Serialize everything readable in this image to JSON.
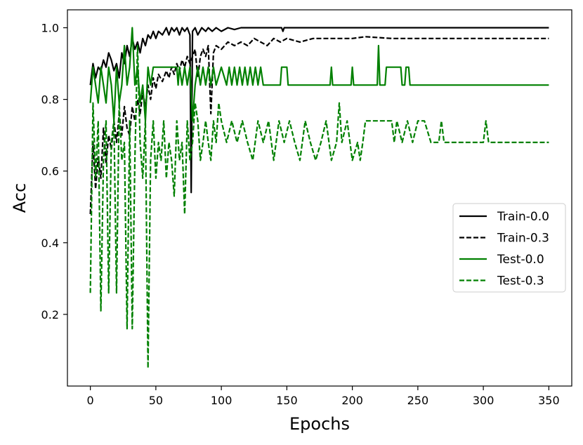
{
  "chart_data": {
    "type": "line",
    "title": "",
    "xlabel": "Epochs",
    "ylabel": "Acc",
    "xlim": [
      -17.5,
      367.5
    ],
    "ylim": [
      0.0,
      1.05
    ],
    "xticks": [
      0,
      50,
      100,
      150,
      200,
      250,
      300,
      350
    ],
    "yticks": [
      0.2,
      0.4,
      0.6,
      0.8,
      1.0
    ],
    "legend_position": "center-right",
    "grid": false,
    "series": [
      {
        "name": "Train-0.0",
        "color": "#000000",
        "dash": "solid",
        "points": [
          [
            0,
            0.84
          ],
          [
            2,
            0.9
          ],
          [
            4,
            0.86
          ],
          [
            6,
            0.89
          ],
          [
            8,
            0.88
          ],
          [
            10,
            0.91
          ],
          [
            12,
            0.89
          ],
          [
            14,
            0.93
          ],
          [
            16,
            0.91
          ],
          [
            18,
            0.88
          ],
          [
            20,
            0.9
          ],
          [
            22,
            0.86
          ],
          [
            24,
            0.93
          ],
          [
            26,
            0.9
          ],
          [
            28,
            0.95
          ],
          [
            30,
            0.92
          ],
          [
            32,
            0.97
          ],
          [
            34,
            0.94
          ],
          [
            36,
            0.96
          ],
          [
            38,
            0.93
          ],
          [
            40,
            0.97
          ],
          [
            42,
            0.95
          ],
          [
            44,
            0.98
          ],
          [
            46,
            0.97
          ],
          [
            48,
            0.99
          ],
          [
            50,
            0.97
          ],
          [
            52,
            0.99
          ],
          [
            55,
            0.98
          ],
          [
            58,
            1.0
          ],
          [
            60,
            0.98
          ],
          [
            62,
            1.0
          ],
          [
            64,
            0.99
          ],
          [
            66,
            1.0
          ],
          [
            68,
            0.98
          ],
          [
            70,
            1.0
          ],
          [
            72,
            0.99
          ],
          [
            74,
            1.0
          ],
          [
            76,
            0.98
          ],
          [
            77,
            0.54
          ],
          [
            78,
            0.99
          ],
          [
            80,
            1.0
          ],
          [
            82,
            0.98
          ],
          [
            85,
            1.0
          ],
          [
            88,
            0.99
          ],
          [
            90,
            1.0
          ],
          [
            93,
            0.99
          ],
          [
            96,
            1.0
          ],
          [
            100,
            0.99
          ],
          [
            105,
            1.0
          ],
          [
            110,
            0.995
          ],
          [
            115,
            1.0
          ],
          [
            146,
            1.0
          ],
          [
            147,
            0.99
          ],
          [
            148,
            1.0
          ],
          [
            350,
            1.0
          ]
        ]
      },
      {
        "name": "Train-0.3",
        "color": "#000000",
        "dash": "dashed",
        "points": [
          [
            0,
            0.48
          ],
          [
            2,
            0.68
          ],
          [
            4,
            0.55
          ],
          [
            6,
            0.64
          ],
          [
            8,
            0.58
          ],
          [
            10,
            0.72
          ],
          [
            12,
            0.62
          ],
          [
            14,
            0.7
          ],
          [
            16,
            0.66
          ],
          [
            18,
            0.74
          ],
          [
            20,
            0.68
          ],
          [
            22,
            0.76
          ],
          [
            24,
            0.7
          ],
          [
            26,
            0.78
          ],
          [
            28,
            0.72
          ],
          [
            30,
            0.7
          ],
          [
            32,
            0.78
          ],
          [
            34,
            0.74
          ],
          [
            36,
            0.8
          ],
          [
            38,
            0.76
          ],
          [
            40,
            0.82
          ],
          [
            42,
            0.78
          ],
          [
            44,
            0.84
          ],
          [
            46,
            0.8
          ],
          [
            48,
            0.86
          ],
          [
            50,
            0.83
          ],
          [
            52,
            0.87
          ],
          [
            55,
            0.85
          ],
          [
            58,
            0.88
          ],
          [
            60,
            0.86
          ],
          [
            62,
            0.89
          ],
          [
            64,
            0.87
          ],
          [
            66,
            0.9
          ],
          [
            68,
            0.88
          ],
          [
            70,
            0.91
          ],
          [
            72,
            0.89
          ],
          [
            74,
            0.92
          ],
          [
            76,
            0.9
          ],
          [
            78,
            0.92
          ],
          [
            80,
            0.94
          ],
          [
            82,
            0.86
          ],
          [
            84,
            0.92
          ],
          [
            86,
            0.94
          ],
          [
            88,
            0.92
          ],
          [
            90,
            0.95
          ],
          [
            92,
            0.76
          ],
          [
            94,
            0.93
          ],
          [
            96,
            0.95
          ],
          [
            100,
            0.94
          ],
          [
            105,
            0.96
          ],
          [
            110,
            0.95
          ],
          [
            115,
            0.96
          ],
          [
            120,
            0.95
          ],
          [
            125,
            0.97
          ],
          [
            130,
            0.96
          ],
          [
            135,
            0.95
          ],
          [
            140,
            0.97
          ],
          [
            145,
            0.96
          ],
          [
            150,
            0.97
          ],
          [
            160,
            0.96
          ],
          [
            170,
            0.97
          ],
          [
            180,
            0.97
          ],
          [
            200,
            0.97
          ],
          [
            210,
            0.975
          ],
          [
            230,
            0.97
          ],
          [
            260,
            0.97
          ],
          [
            290,
            0.97
          ],
          [
            350,
            0.97
          ]
        ]
      },
      {
        "name": "Test-0.0",
        "color": "#008000",
        "dash": "solid",
        "points": [
          [
            0,
            0.79
          ],
          [
            2,
            0.89
          ],
          [
            4,
            0.84
          ],
          [
            6,
            0.79
          ],
          [
            8,
            0.89
          ],
          [
            10,
            0.84
          ],
          [
            12,
            0.79
          ],
          [
            14,
            0.89
          ],
          [
            16,
            0.84
          ],
          [
            18,
            0.74
          ],
          [
            20,
            0.89
          ],
          [
            22,
            0.79
          ],
          [
            24,
            0.84
          ],
          [
            26,
            0.95
          ],
          [
            28,
            0.84
          ],
          [
            30,
            0.89
          ],
          [
            32,
            1.0
          ],
          [
            34,
            0.84
          ],
          [
            36,
            0.89
          ],
          [
            38,
            0.79
          ],
          [
            40,
            0.84
          ],
          [
            42,
            0.74
          ],
          [
            44,
            0.89
          ],
          [
            46,
            0.84
          ],
          [
            48,
            0.89
          ],
          [
            66,
            0.89
          ],
          [
            67,
            0.84
          ],
          [
            68,
            0.89
          ],
          [
            70,
            0.84
          ],
          [
            72,
            0.89
          ],
          [
            74,
            0.84
          ],
          [
            76,
            0.89
          ],
          [
            78,
            0.74
          ],
          [
            80,
            0.84
          ],
          [
            82,
            0.89
          ],
          [
            84,
            0.84
          ],
          [
            86,
            0.89
          ],
          [
            88,
            0.84
          ],
          [
            90,
            0.89
          ],
          [
            92,
            0.84
          ],
          [
            94,
            0.89
          ],
          [
            96,
            0.84
          ],
          [
            100,
            0.89
          ],
          [
            104,
            0.84
          ],
          [
            106,
            0.89
          ],
          [
            108,
            0.84
          ],
          [
            110,
            0.89
          ],
          [
            112,
            0.84
          ],
          [
            114,
            0.89
          ],
          [
            116,
            0.84
          ],
          [
            118,
            0.89
          ],
          [
            120,
            0.84
          ],
          [
            122,
            0.89
          ],
          [
            124,
            0.84
          ],
          [
            126,
            0.89
          ],
          [
            128,
            0.84
          ],
          [
            130,
            0.89
          ],
          [
            132,
            0.84
          ],
          [
            145,
            0.84
          ],
          [
            146,
            0.89
          ],
          [
            150,
            0.89
          ],
          [
            151,
            0.84
          ],
          [
            183,
            0.84
          ],
          [
            184,
            0.89
          ],
          [
            185,
            0.84
          ],
          [
            199,
            0.84
          ],
          [
            200,
            0.89
          ],
          [
            201,
            0.84
          ],
          [
            219,
            0.84
          ],
          [
            220,
            0.95
          ],
          [
            221,
            0.84
          ],
          [
            225,
            0.84
          ],
          [
            226,
            0.89
          ],
          [
            237,
            0.89
          ],
          [
            238,
            0.84
          ],
          [
            240,
            0.84
          ],
          [
            241,
            0.89
          ],
          [
            243,
            0.89
          ],
          [
            244,
            0.84
          ],
          [
            350,
            0.84
          ]
        ]
      },
      {
        "name": "Test-0.3",
        "color": "#008000",
        "dash": "dashed",
        "points": [
          [
            0,
            0.26
          ],
          [
            2,
            0.79
          ],
          [
            4,
            0.58
          ],
          [
            6,
            0.74
          ],
          [
            8,
            0.21
          ],
          [
            10,
            0.63
          ],
          [
            12,
            0.74
          ],
          [
            14,
            0.26
          ],
          [
            16,
            0.68
          ],
          [
            18,
            0.74
          ],
          [
            20,
            0.26
          ],
          [
            22,
            0.79
          ],
          [
            24,
            0.63
          ],
          [
            26,
            0.68
          ],
          [
            28,
            0.16
          ],
          [
            30,
            0.74
          ],
          [
            32,
            0.16
          ],
          [
            34,
            0.63
          ],
          [
            36,
            0.95
          ],
          [
            38,
            0.68
          ],
          [
            40,
            0.58
          ],
          [
            42,
            0.74
          ],
          [
            44,
            0.05
          ],
          [
            46,
            0.63
          ],
          [
            48,
            0.74
          ],
          [
            50,
            0.58
          ],
          [
            52,
            0.68
          ],
          [
            54,
            0.63
          ],
          [
            56,
            0.74
          ],
          [
            58,
            0.58
          ],
          [
            60,
            0.68
          ],
          [
            62,
            0.63
          ],
          [
            64,
            0.53
          ],
          [
            66,
            0.74
          ],
          [
            68,
            0.63
          ],
          [
            70,
            0.68
          ],
          [
            72,
            0.48
          ],
          [
            74,
            0.74
          ],
          [
            76,
            0.63
          ],
          [
            78,
            0.68
          ],
          [
            80,
            0.79
          ],
          [
            82,
            0.74
          ],
          [
            84,
            0.63
          ],
          [
            86,
            0.68
          ],
          [
            88,
            0.74
          ],
          [
            90,
            0.68
          ],
          [
            92,
            0.63
          ],
          [
            94,
            0.74
          ],
          [
            96,
            0.68
          ],
          [
            98,
            0.79
          ],
          [
            100,
            0.74
          ],
          [
            104,
            0.68
          ],
          [
            108,
            0.74
          ],
          [
            112,
            0.68
          ],
          [
            116,
            0.74
          ],
          [
            120,
            0.68
          ],
          [
            124,
            0.63
          ],
          [
            128,
            0.74
          ],
          [
            132,
            0.68
          ],
          [
            136,
            0.74
          ],
          [
            140,
            0.63
          ],
          [
            144,
            0.74
          ],
          [
            148,
            0.68
          ],
          [
            152,
            0.74
          ],
          [
            156,
            0.68
          ],
          [
            160,
            0.63
          ],
          [
            164,
            0.74
          ],
          [
            168,
            0.68
          ],
          [
            172,
            0.63
          ],
          [
            176,
            0.68
          ],
          [
            180,
            0.74
          ],
          [
            184,
            0.63
          ],
          [
            188,
            0.68
          ],
          [
            190,
            0.79
          ],
          [
            192,
            0.68
          ],
          [
            196,
            0.74
          ],
          [
            200,
            0.63
          ],
          [
            204,
            0.68
          ],
          [
            206,
            0.63
          ],
          [
            208,
            0.68
          ],
          [
            210,
            0.74
          ],
          [
            230,
            0.74
          ],
          [
            232,
            0.68
          ],
          [
            234,
            0.74
          ],
          [
            238,
            0.68
          ],
          [
            242,
            0.74
          ],
          [
            246,
            0.68
          ],
          [
            250,
            0.74
          ],
          [
            255,
            0.74
          ],
          [
            260,
            0.68
          ],
          [
            266,
            0.68
          ],
          [
            268,
            0.74
          ],
          [
            270,
            0.68
          ],
          [
            300,
            0.68
          ],
          [
            302,
            0.74
          ],
          [
            304,
            0.68
          ],
          [
            350,
            0.68
          ]
        ]
      }
    ]
  }
}
